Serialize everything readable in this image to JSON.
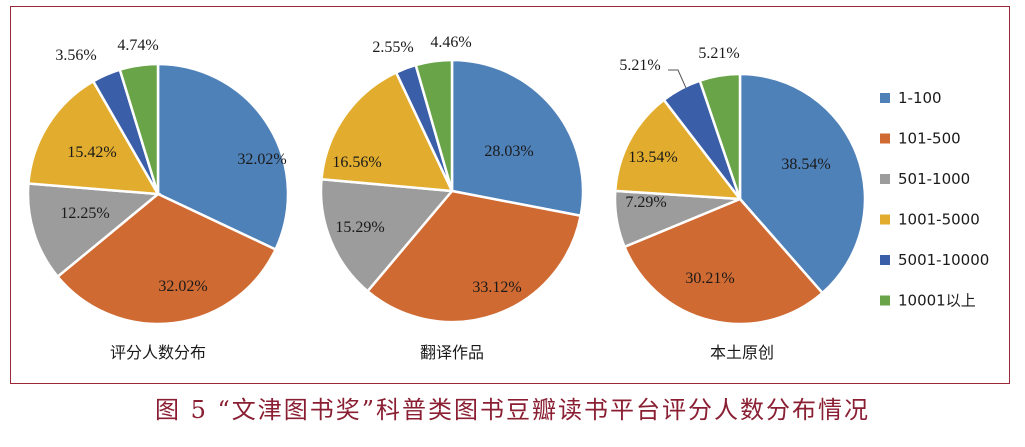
{
  "caption": "图 5 “文津图书奖”科普类图书豆瓣读书平台评分人数分布情况",
  "colors": [
    "#4f81b9",
    "#d06a33",
    "#9c9c9c",
    "#e2ad2e",
    "#3a5ea8",
    "#6aa448"
  ],
  "chart_data": [
    {
      "type": "pie",
      "title": "评分人数分布",
      "categories": [
        "1-100",
        "101-500",
        "501-1000",
        "1001-5000",
        "5001-10000",
        "10001以上"
      ],
      "values": [
        32.02,
        32.02,
        12.25,
        15.42,
        3.56,
        4.74
      ],
      "labels": [
        "32.02%",
        "32.02%",
        "12.25%",
        "15.42%",
        "3.56%",
        "4.74%"
      ]
    },
    {
      "type": "pie",
      "title": "翻译作品",
      "categories": [
        "1-100",
        "101-500",
        "501-1000",
        "1001-5000",
        "5001-10000",
        "10001以上"
      ],
      "values": [
        28.03,
        33.12,
        15.29,
        16.56,
        2.55,
        4.46
      ],
      "labels": [
        "28.03%",
        "33.12%",
        "15.29%",
        "16.56%",
        "2.55%",
        "4.46%"
      ]
    },
    {
      "type": "pie",
      "title": "本土原创",
      "categories": [
        "1-100",
        "101-500",
        "501-1000",
        "1001-5000",
        "5001-10000",
        "10001以上"
      ],
      "values": [
        38.54,
        30.21,
        7.29,
        13.54,
        5.21,
        5.21
      ],
      "labels": [
        "38.54%",
        "30.21%",
        "7.29%",
        "13.54%",
        "5.21%",
        "5.21%"
      ]
    }
  ],
  "legend": {
    "placement": "right",
    "items": [
      "1-100",
      "101-500",
      "501-1000",
      "1001-5000",
      "5001-10000",
      "10001以上"
    ]
  }
}
